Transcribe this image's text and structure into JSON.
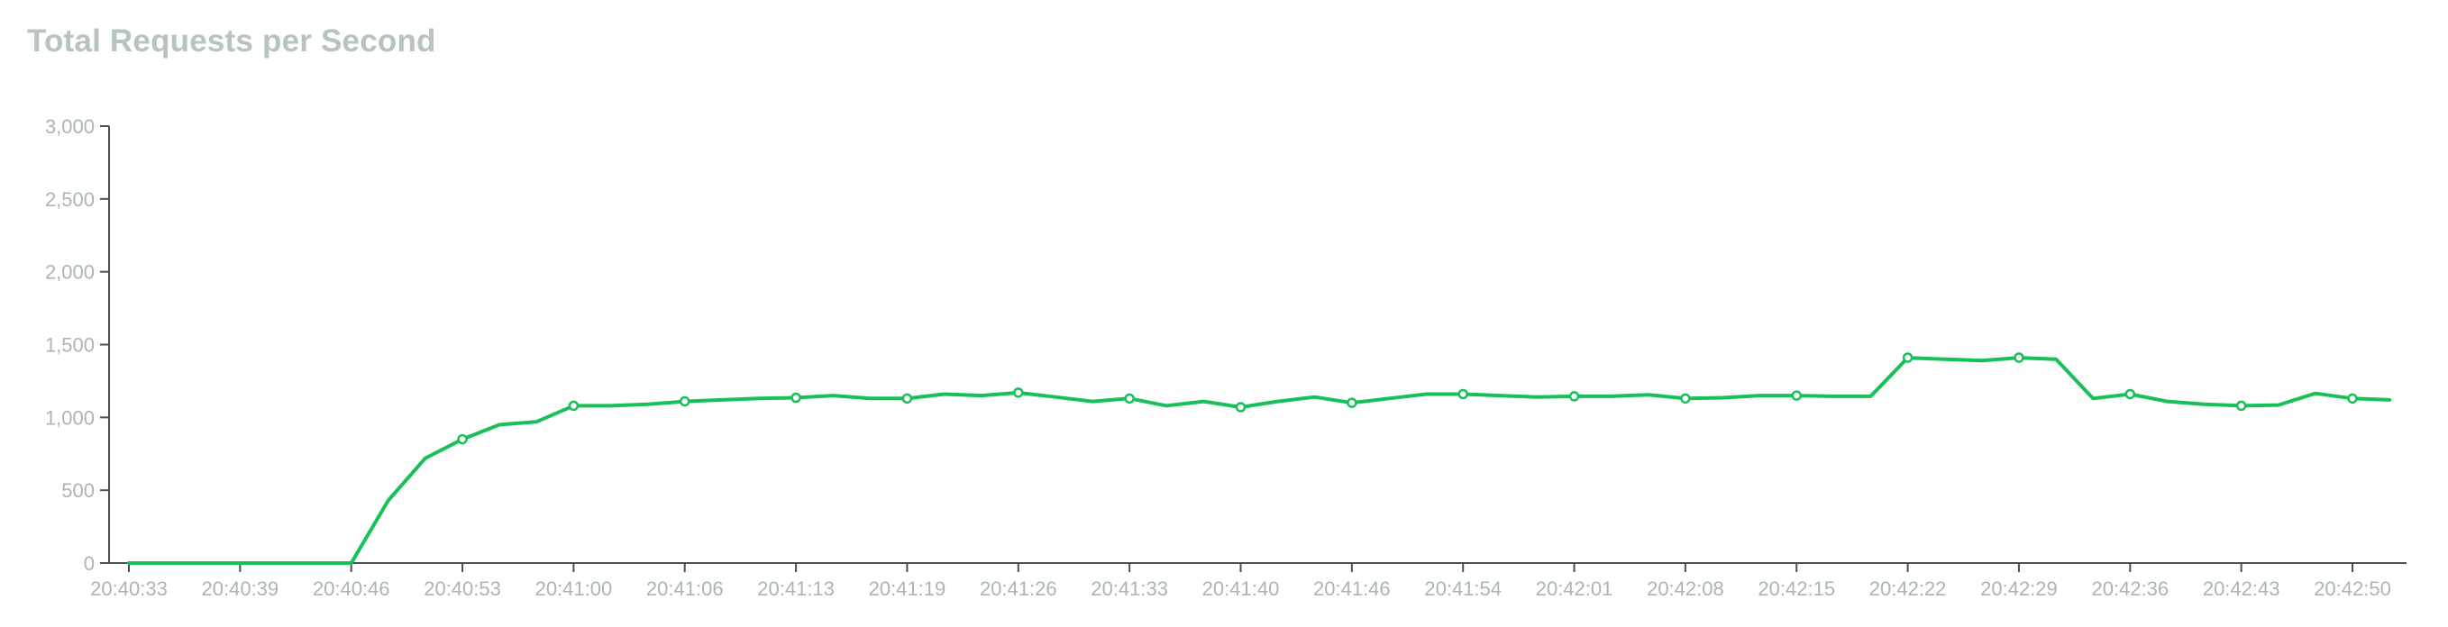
{
  "chart_data": {
    "type": "line",
    "title": "Total Requests per Second",
    "xlabel": "",
    "ylabel": "",
    "ylim": [
      0,
      3000
    ],
    "y_ticks": [
      0,
      500,
      1000,
      1500,
      2000,
      2500,
      3000
    ],
    "y_tick_labels": [
      "0",
      "500",
      "1,000",
      "1,500",
      "2,000",
      "2,500",
      "3,000"
    ],
    "x_tick_labels": [
      "20:40:33",
      "20:40:39",
      "20:40:46",
      "20:40:53",
      "20:41:00",
      "20:41:06",
      "20:41:13",
      "20:41:19",
      "20:41:26",
      "20:41:33",
      "20:41:40",
      "20:41:46",
      "20:41:54",
      "20:42:01",
      "20:42:08",
      "20:42:15",
      "20:42:22",
      "20:42:29",
      "20:42:36",
      "20:42:43",
      "20:42:50"
    ],
    "grid": false,
    "series": [
      {
        "color": "#17c157",
        "values": [
          0,
          0,
          0,
          0,
          0,
          0,
          0,
          430,
          720,
          850,
          950,
          970,
          1080,
          1080,
          1090,
          1110,
          1120,
          1130,
          1135,
          1150,
          1130,
          1130,
          1160,
          1150,
          1170,
          1140,
          1110,
          1130,
          1080,
          1110,
          1070,
          1110,
          1140,
          1100,
          1130,
          1160,
          1160,
          1150,
          1140,
          1145,
          1145,
          1155,
          1130,
          1135,
          1150,
          1150,
          1145,
          1145,
          1410,
          1400,
          1390,
          1410,
          1400,
          1130,
          1160,
          1110,
          1090,
          1080,
          1085,
          1165,
          1130,
          1120
        ],
        "marker_every": 3
      }
    ]
  }
}
